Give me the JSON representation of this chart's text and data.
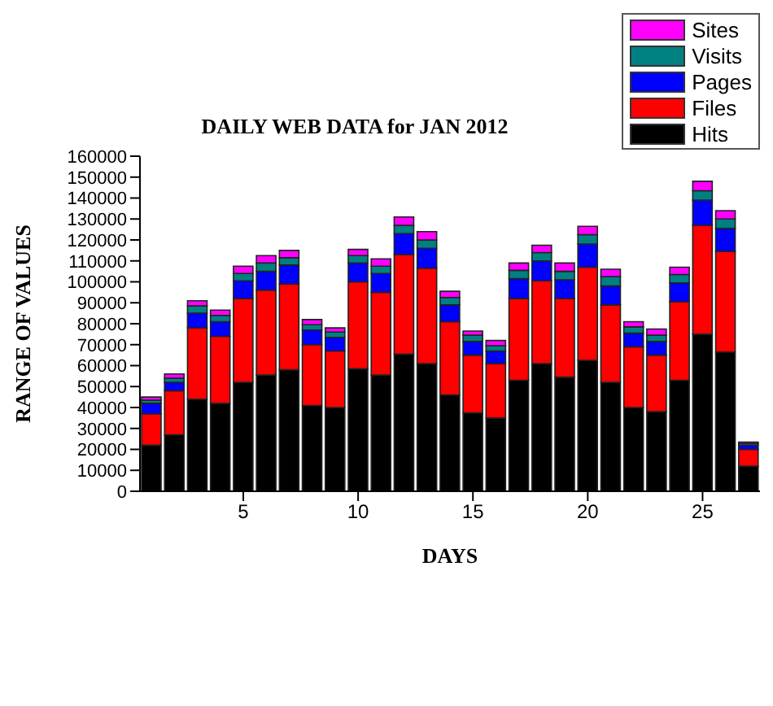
{
  "chart_data": {
    "type": "bar",
    "stacked": true,
    "title": "DAILY WEB DATA for JAN 2012",
    "xlabel": "DAYS",
    "ylabel": "RANGE OF VALUES",
    "x": [
      1,
      2,
      3,
      4,
      5,
      6,
      7,
      8,
      9,
      10,
      11,
      12,
      13,
      14,
      15,
      16,
      17,
      18,
      19,
      20,
      21,
      22,
      23,
      24,
      25,
      26,
      27
    ],
    "xlim": [
      0.5,
      27.5
    ],
    "xticks": [
      5,
      10,
      15,
      20,
      25
    ],
    "ylim": [
      0,
      160000
    ],
    "yticks": [
      0,
      10000,
      20000,
      30000,
      40000,
      50000,
      60000,
      70000,
      80000,
      90000,
      100000,
      110000,
      120000,
      130000,
      140000,
      150000,
      160000
    ],
    "grid": false,
    "legend": "top right",
    "series": [
      {
        "name": "Hits",
        "color": "#000000",
        "values": [
          22000,
          27000,
          44000,
          42000,
          52000,
          55500,
          58000,
          41000,
          40000,
          58500,
          55500,
          65500,
          61000,
          46000,
          37500,
          35000,
          53000,
          61000,
          54500,
          62500,
          52000,
          40000,
          38000,
          53000,
          75000,
          66500,
          12000
        ]
      },
      {
        "name": "Files",
        "color": "#ff0000",
        "values": [
          15000,
          21000,
          34000,
          32000,
          40000,
          40500,
          41000,
          29000,
          27000,
          41500,
          39500,
          47500,
          45500,
          35000,
          27500,
          26000,
          39000,
          39500,
          37500,
          44500,
          37000,
          29000,
          27000,
          37500,
          52000,
          48000,
          8000
        ]
      },
      {
        "name": "Pages",
        "color": "#0000ff",
        "values": [
          5000,
          4000,
          7000,
          7000,
          8500,
          9000,
          9000,
          7000,
          6500,
          9000,
          9000,
          10000,
          9500,
          8000,
          6500,
          6000,
          9500,
          9500,
          9000,
          11000,
          9000,
          6500,
          6500,
          9000,
          12000,
          11000,
          2000
        ]
      },
      {
        "name": "Visits",
        "color": "#008080",
        "values": [
          1500,
          2000,
          3500,
          3000,
          3500,
          4000,
          3500,
          2500,
          2500,
          3500,
          3500,
          4000,
          4000,
          3500,
          3000,
          2500,
          4000,
          4000,
          4000,
          4500,
          4500,
          3000,
          3000,
          4000,
          4500,
          4500,
          800
        ]
      },
      {
        "name": "Sites",
        "color": "#ff00ff",
        "values": [
          1500,
          2000,
          2500,
          2500,
          3500,
          3500,
          3500,
          2500,
          2000,
          3000,
          3500,
          4000,
          4000,
          3000,
          2000,
          2500,
          3500,
          3500,
          4000,
          4000,
          3500,
          2500,
          3000,
          3500,
          4500,
          4000,
          700
        ]
      }
    ]
  }
}
